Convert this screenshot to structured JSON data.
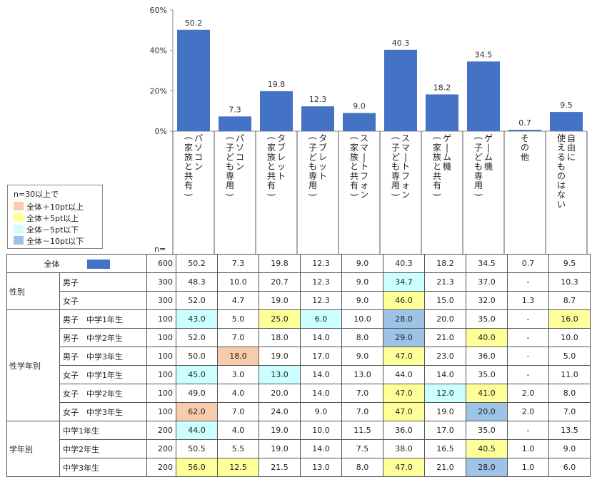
{
  "chart_data": {
    "type": "bar",
    "yticks": [
      "60%",
      "40%",
      "20%",
      "0%"
    ],
    "ylim": [
      0,
      60
    ],
    "categories": [
      "パソコン（家族と共有）",
      "パソコン（子ども専用）",
      "タブレット（家族と共有）",
      "タブレット（子ども専用）",
      "スマートフォン（家族と共有）",
      "スマートフォン（子ども専用）",
      "ゲーム機（家族と共有）",
      "ゲーム機（子ども専用）",
      "その他",
      "自由に使えるものはない"
    ],
    "values": [
      50.2,
      7.3,
      19.8,
      12.3,
      9.0,
      40.3,
      18.2,
      34.5,
      0.7,
      9.5
    ],
    "value_labels": [
      "50.2",
      "7.3",
      "19.8",
      "12.3",
      "9.0",
      "40.3",
      "18.2",
      "34.5",
      "0.7",
      "9.5"
    ],
    "bar_color": "#4472C4"
  },
  "legend": {
    "title": "n=30以上で",
    "items": [
      {
        "label": "全体＋10pt以上",
        "color": "#F8CBAD"
      },
      {
        "label": "全体＋5pt以上",
        "color": "#FFFF99"
      },
      {
        "label": "全体－5pt以下",
        "color": "#CCFFFF"
      },
      {
        "label": "全体－10pt以下",
        "color": "#9DC3E6"
      }
    ]
  },
  "n_label": "n=",
  "table": {
    "total": {
      "label": "全体",
      "n": "600",
      "values": [
        "50.2",
        "7.3",
        "19.8",
        "12.3",
        "9.0",
        "40.3",
        "18.2",
        "34.5",
        "0.7",
        "9.5"
      ]
    },
    "groups": [
      {
        "label": "性別",
        "rows": [
          {
            "label": "男子",
            "n": "300",
            "values": [
              "48.3",
              "10.0",
              "20.7",
              "12.3",
              "9.0",
              "34.7",
              "21.3",
              "37.0",
              "-",
              "10.3"
            ],
            "hl": [
              "",
              "",
              "",
              "",
              "",
              "c",
              "",
              "",
              "",
              ""
            ]
          },
          {
            "label": "女子",
            "n": "300",
            "values": [
              "52.0",
              "4.7",
              "19.0",
              "12.3",
              "9.0",
              "46.0",
              "15.0",
              "32.0",
              "1.3",
              "8.7"
            ],
            "hl": [
              "",
              "",
              "",
              "",
              "",
              "y",
              "",
              "",
              "",
              ""
            ]
          }
        ]
      },
      {
        "label": "性学年別",
        "rows": [
          {
            "label": "男子　中学1年生",
            "n": "100",
            "values": [
              "43.0",
              "5.0",
              "25.0",
              "6.0",
              "10.0",
              "28.0",
              "20.0",
              "35.0",
              "-",
              "16.0"
            ],
            "hl": [
              "c",
              "",
              "y",
              "c",
              "",
              "b",
              "",
              "",
              "",
              "y"
            ]
          },
          {
            "label": "男子　中学2年生",
            "n": "100",
            "values": [
              "52.0",
              "7.0",
              "18.0",
              "14.0",
              "8.0",
              "29.0",
              "21.0",
              "40.0",
              "-",
              "10.0"
            ],
            "hl": [
              "",
              "",
              "",
              "",
              "",
              "b",
              "",
              "y",
              "",
              ""
            ]
          },
          {
            "label": "男子　中学3年生",
            "n": "100",
            "values": [
              "50.0",
              "18.0",
              "19.0",
              "17.0",
              "9.0",
              "47.0",
              "23.0",
              "36.0",
              "-",
              "5.0"
            ],
            "hl": [
              "",
              "o",
              "",
              "",
              "",
              "y",
              "",
              "",
              "",
              ""
            ]
          },
          {
            "label": "女子　中学1年生",
            "n": "100",
            "values": [
              "45.0",
              "3.0",
              "13.0",
              "14.0",
              "13.0",
              "44.0",
              "14.0",
              "35.0",
              "-",
              "11.0"
            ],
            "hl": [
              "c",
              "",
              "c",
              "",
              "",
              "",
              "",
              "",
              "",
              ""
            ]
          },
          {
            "label": "女子　中学2年生",
            "n": "100",
            "values": [
              "49.0",
              "4.0",
              "20.0",
              "14.0",
              "7.0",
              "47.0",
              "12.0",
              "41.0",
              "2.0",
              "8.0"
            ],
            "hl": [
              "",
              "",
              "",
              "",
              "",
              "y",
              "c",
              "y",
              "",
              ""
            ]
          },
          {
            "label": "女子　中学3年生",
            "n": "100",
            "values": [
              "62.0",
              "7.0",
              "24.0",
              "9.0",
              "7.0",
              "47.0",
              "19.0",
              "20.0",
              "2.0",
              "7.0"
            ],
            "hl": [
              "o",
              "",
              "",
              "",
              "",
              "y",
              "",
              "b",
              "",
              ""
            ]
          }
        ]
      },
      {
        "label": "学年別",
        "rows": [
          {
            "label": "中学1年生",
            "n": "200",
            "values": [
              "44.0",
              "4.0",
              "19.0",
              "10.0",
              "11.5",
              "36.0",
              "17.0",
              "35.0",
              "-",
              "13.5"
            ],
            "hl": [
              "c",
              "",
              "",
              "",
              "",
              "",
              "",
              "",
              "",
              ""
            ]
          },
          {
            "label": "中学2年生",
            "n": "200",
            "values": [
              "50.5",
              "5.5",
              "19.0",
              "14.0",
              "7.5",
              "38.0",
              "16.5",
              "40.5",
              "1.0",
              "9.0"
            ],
            "hl": [
              "",
              "",
              "",
              "",
              "",
              "",
              "",
              "y",
              "",
              ""
            ]
          },
          {
            "label": "中学3年生",
            "n": "200",
            "values": [
              "56.0",
              "12.5",
              "21.5",
              "13.0",
              "8.0",
              "47.0",
              "21.0",
              "28.0",
              "1.0",
              "6.0"
            ],
            "hl": [
              "y",
              "y",
              "",
              "",
              "",
              "y",
              "",
              "b",
              "",
              ""
            ]
          }
        ]
      }
    ]
  }
}
